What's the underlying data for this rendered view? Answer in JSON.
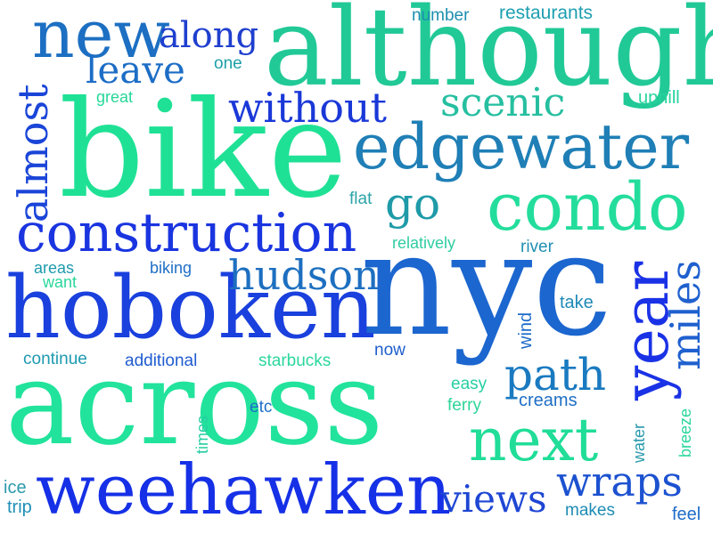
{
  "colors": {
    "blue": "#1a35e0",
    "royal": "#1f4fd6",
    "steel": "#1c6fc2",
    "teal": "#1a98a8",
    "green": "#25cf8f",
    "mint": "#1de6a0",
    "lime": "#33e39a"
  },
  "words": [
    {
      "id": "although",
      "text": "although"
    },
    {
      "id": "bike",
      "text": "bike"
    },
    {
      "id": "nyc",
      "text": "nyc"
    },
    {
      "id": "across",
      "text": "across"
    },
    {
      "id": "hoboken",
      "text": "hoboken"
    },
    {
      "id": "weehawken",
      "text": "weehawken"
    },
    {
      "id": "edgewater",
      "text": "edgewater"
    },
    {
      "id": "condo",
      "text": "condo"
    },
    {
      "id": "construction",
      "text": "construction"
    },
    {
      "id": "new",
      "text": "new"
    },
    {
      "id": "next",
      "text": "next"
    },
    {
      "id": "year",
      "text": "year"
    },
    {
      "id": "almost",
      "text": "almost"
    },
    {
      "id": "miles",
      "text": "miles"
    },
    {
      "id": "hudson",
      "text": "hudson"
    },
    {
      "id": "scenic",
      "text": "scenic"
    },
    {
      "id": "without",
      "text": "without"
    },
    {
      "id": "along",
      "text": "along"
    },
    {
      "id": "leave",
      "text": "leave"
    },
    {
      "id": "path",
      "text": "path"
    },
    {
      "id": "wraps",
      "text": "wraps"
    },
    {
      "id": "views",
      "text": "views"
    },
    {
      "id": "go",
      "text": "go"
    },
    {
      "id": "number",
      "text": "number"
    },
    {
      "id": "restaurants",
      "text": "restaurants"
    },
    {
      "id": "one",
      "text": "one"
    },
    {
      "id": "great",
      "text": "great"
    },
    {
      "id": "uphill",
      "text": "uphill"
    },
    {
      "id": "flat",
      "text": "flat"
    },
    {
      "id": "relatively",
      "text": "relatively"
    },
    {
      "id": "river",
      "text": "river"
    },
    {
      "id": "areas",
      "text": "areas"
    },
    {
      "id": "want",
      "text": "want"
    },
    {
      "id": "biking",
      "text": "biking"
    },
    {
      "id": "take",
      "text": "take"
    },
    {
      "id": "wind",
      "text": "wind"
    },
    {
      "id": "now",
      "text": "now"
    },
    {
      "id": "continue",
      "text": "continue"
    },
    {
      "id": "additional",
      "text": "additional"
    },
    {
      "id": "starbucks",
      "text": "starbucks"
    },
    {
      "id": "easy",
      "text": "easy"
    },
    {
      "id": "creams",
      "text": "creams"
    },
    {
      "id": "ferry",
      "text": "ferry"
    },
    {
      "id": "times",
      "text": "times"
    },
    {
      "id": "etc",
      "text": "etc"
    },
    {
      "id": "breeze",
      "text": "breeze"
    },
    {
      "id": "water",
      "text": "water"
    },
    {
      "id": "ice",
      "text": "ice"
    },
    {
      "id": "trip",
      "text": "trip"
    },
    {
      "id": "makes",
      "text": "makes"
    },
    {
      "id": "feel",
      "text": "feel"
    }
  ]
}
